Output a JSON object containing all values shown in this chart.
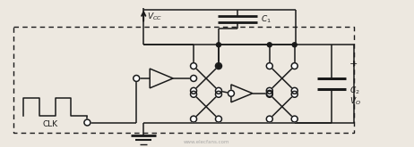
{
  "bg_color": "#ede8e0",
  "line_color": "#1a1a1a",
  "text_vcc": "$V_{CC}$",
  "text_c1": "$C_1$",
  "text_c2": "$C_2$",
  "text_vo": "$V_O$",
  "text_clk": "CLK",
  "text_plus": "+",
  "watermark": "www.elecfans.com"
}
